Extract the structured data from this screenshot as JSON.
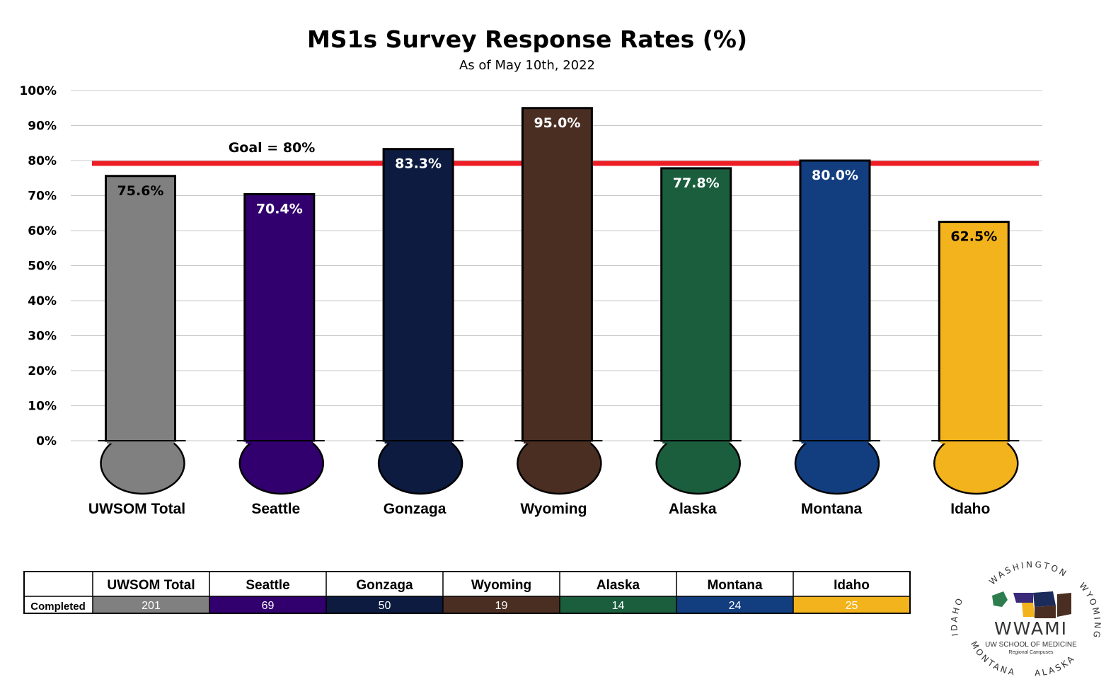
{
  "chart_data": {
    "type": "bar",
    "title": "MS1s Survey Response Rates (%)",
    "subtitle": "As of May 10th, 2022",
    "ylim": [
      0,
      100
    ],
    "yticks": [
      "0%",
      "10%",
      "20%",
      "30%",
      "40%",
      "50%",
      "60%",
      "70%",
      "80%",
      "90%",
      "100%"
    ],
    "grid": true,
    "categories": [
      "UWSOM Total",
      "Seattle",
      "Gonzaga",
      "Wyoming",
      "Alaska",
      "Montana",
      "Idaho"
    ],
    "values": [
      75.6,
      70.4,
      83.3,
      95.0,
      77.8,
      80.0,
      62.5
    ],
    "data_labels": [
      "75.6%",
      "70.4%",
      "83.3%",
      "95.0%",
      "77.8%",
      "80.0%",
      "62.5%"
    ],
    "colors": [
      "#808080",
      "#32006e",
      "#0c1b3f",
      "#4b2e22",
      "#1b5e3e",
      "#123e80",
      "#f2b31c"
    ],
    "label_colors": [
      "#000000",
      "#ffffff",
      "#ffffff",
      "#ffffff",
      "#ffffff",
      "#ffffff",
      "#000000"
    ],
    "goal": {
      "value": 80,
      "label": "Goal = 80%",
      "color": "#ee1c25"
    }
  },
  "table": {
    "row_header": "Completed",
    "columns": [
      "UWSOM Total",
      "Seattle",
      "Gonzaga",
      "Wyoming",
      "Alaska",
      "Montana",
      "Idaho"
    ],
    "completed": [
      "201",
      "69",
      "50",
      "19",
      "14",
      "24",
      "25"
    ]
  },
  "logo": {
    "main": "WWAMI",
    "sub": "UW SCHOOL OF MEDICINE",
    "sub2": "Regional Campuses",
    "ring_top": "WASHINGTON",
    "ring_right": "WYOMING",
    "ring_bottom_right": "ALASKA",
    "ring_bottom_left": "MONTANA",
    "ring_left": "IDAHO"
  }
}
